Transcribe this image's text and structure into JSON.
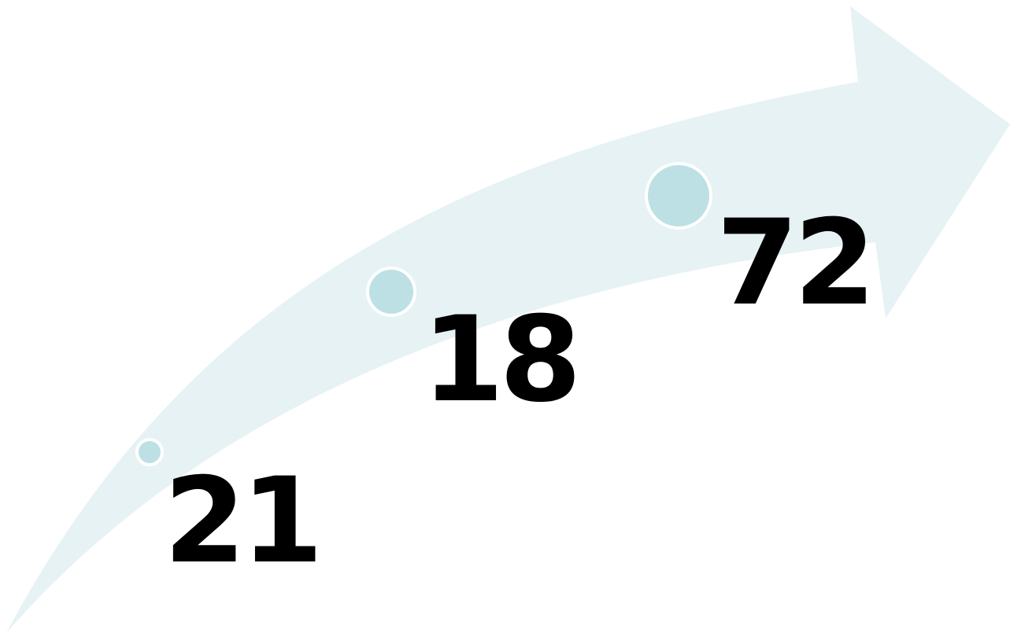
{
  "colors": {
    "arrow": "#e6f2f4",
    "dot_fill": "#bde0e4",
    "dot_ring": "#ffffff",
    "text": "#000000",
    "background": "#ffffff"
  },
  "milestones": [
    {
      "value": "21"
    },
    {
      "value": "18"
    },
    {
      "value": "72"
    }
  ]
}
